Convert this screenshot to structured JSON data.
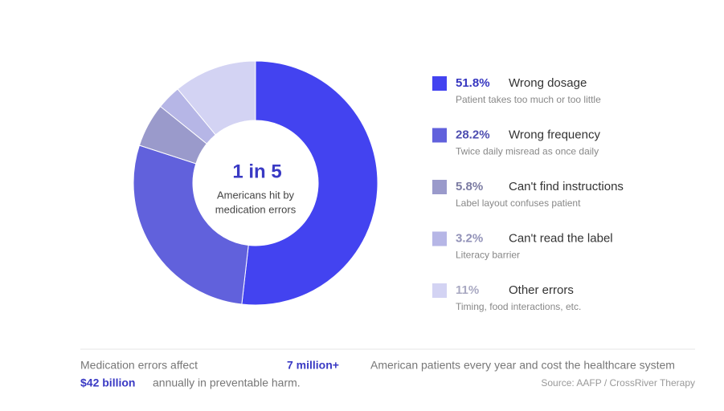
{
  "chart_data": {
    "type": "pie",
    "center_title": "1 in 5",
    "center_subtitle": [
      "Americans hit by",
      "medication errors"
    ],
    "categories": [
      "Wrong dosage",
      "Wrong frequency",
      "Can't find instructions",
      "Can't read the label",
      "Other errors"
    ],
    "descriptions": [
      "Patient takes too much or too little",
      "Twice daily misread as once daily",
      "Label layout confuses patient",
      "Literacy barrier",
      "Timing, food interactions, etc."
    ],
    "values": [
      51.8,
      28.2,
      5.8,
      3.2,
      11
    ],
    "value_labels": [
      "51.8%",
      "28.2%",
      "5.8%",
      "3.2%",
      "11%"
    ],
    "colors": [
      "#4343f0",
      "#6161dc",
      "#9a9acb",
      "#b6b6e6",
      "#d3d3f3"
    ]
  },
  "footer": {
    "line1": [
      "Medication errors affect",
      "7 million+",
      "American patients every year and cost the healthcare system"
    ],
    "line2": [
      "$42 billion",
      "annually in preventable harm."
    ],
    "source": "Source: AAFP / CrossRiver Therapy"
  }
}
